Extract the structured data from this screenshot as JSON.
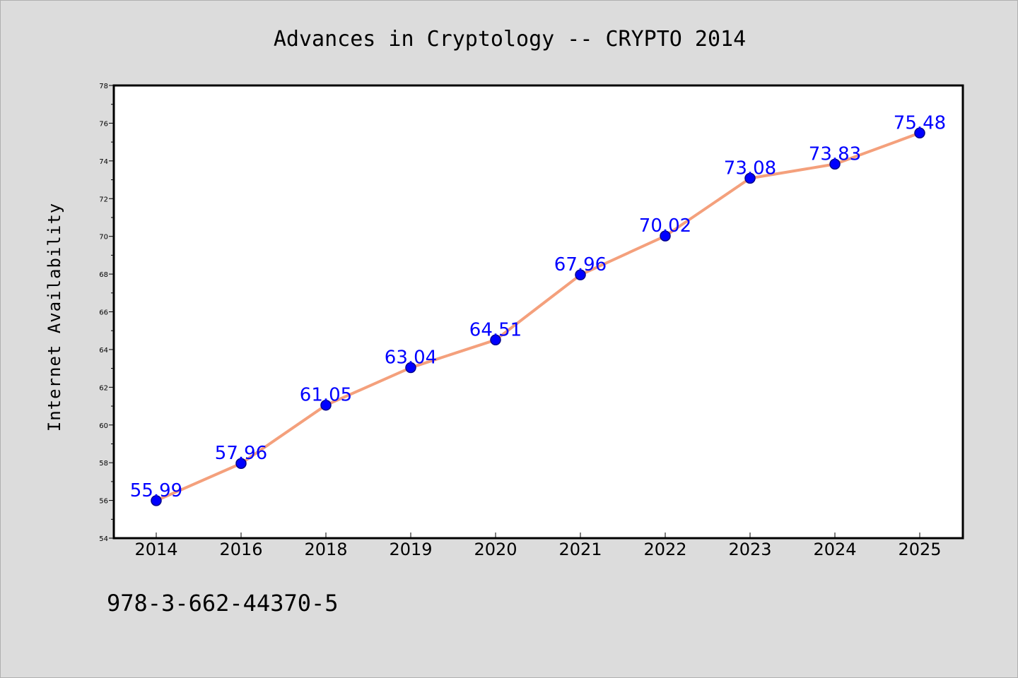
{
  "chart_data": {
    "type": "line",
    "title": "Advances in Cryptology -- CRYPTO 2014",
    "xlabel": "",
    "ylabel": "Internet Availability",
    "categories": [
      "2014",
      "2016",
      "2018",
      "2019",
      "2020",
      "2021",
      "2022",
      "2023",
      "2024",
      "2025"
    ],
    "values": [
      55.99,
      57.96,
      61.05,
      63.04,
      64.51,
      67.96,
      70.02,
      73.08,
      73.83,
      75.48
    ],
    "data_labels": [
      "55.99",
      "57.96",
      "61.05",
      "63.04",
      "64.51",
      "67.96",
      "70.02",
      "73.08",
      "73.83",
      "75.48"
    ],
    "ylim": [
      54,
      78
    ],
    "yticks": [
      "54",
      "56",
      "58",
      "60",
      "62",
      "64",
      "66",
      "68",
      "70",
      "72",
      "74",
      "76",
      "78"
    ],
    "grid": false,
    "legend": "none",
    "colors": {
      "line": "#f4a07c",
      "marker": "#0000ff",
      "marker_edge": "#00008b",
      "data_label": "#0000ff",
      "plot_background": "#ffffff",
      "figure_background": "#dcdcdc"
    }
  },
  "footer": {
    "isbn": "978-3-662-44370-5"
  }
}
